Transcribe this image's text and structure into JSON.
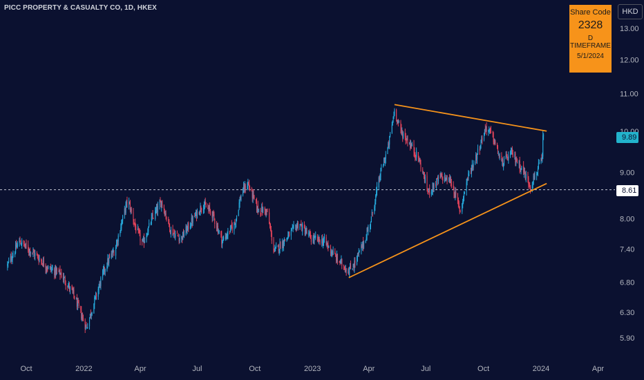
{
  "header": {
    "title": "PICC PROPERTY & CASUALTY CO, 1D, HKEX",
    "currency": "HKD"
  },
  "info_box": {
    "label": "Share Code",
    "code": "2328",
    "timeframe": "D TIMEFRAME",
    "date": "5/1/2024"
  },
  "price_tags": {
    "last": "9.89",
    "crosshair": "8.61"
  },
  "colors": {
    "background": "#0b1130",
    "up": "#26a7d9",
    "down": "#e0435a",
    "trendline": "#f7931a",
    "info_box": "#f7931a"
  },
  "chart_data": {
    "type": "candlestick",
    "symbol": "PICC PROPERTY & CASUALTY CO",
    "timeframe": "1D",
    "exchange": "HKEX",
    "log_scale": true,
    "grid": false,
    "y_ticks": [
      "13.00",
      "12.00",
      "11.00",
      "10.00",
      "9.00",
      "8.00",
      "7.40",
      "6.80",
      "6.30",
      "5.90"
    ],
    "x_ticks": [
      "Oct",
      "2022",
      "Apr",
      "Jul",
      "Oct",
      "2023",
      "Apr",
      "Jul",
      "Oct",
      "2024",
      "Apr"
    ],
    "close_path": [
      [
        "2021-09-01",
        7.1
      ],
      [
        "2021-09-20",
        7.55
      ],
      [
        "2021-10-15",
        7.3
      ],
      [
        "2021-11-05",
        7.05
      ],
      [
        "2021-11-25",
        6.95
      ],
      [
        "2021-12-15",
        6.6
      ],
      [
        "2021-12-30",
        6.2
      ],
      [
        "2022-01-05",
        6.05
      ],
      [
        "2022-01-20",
        6.55
      ],
      [
        "2022-02-05",
        7.1
      ],
      [
        "2022-02-20",
        7.4
      ],
      [
        "2022-03-02",
        7.9
      ],
      [
        "2022-03-12",
        8.4
      ],
      [
        "2022-03-25",
        7.8
      ],
      [
        "2022-04-05",
        7.5
      ],
      [
        "2022-04-20",
        8.0
      ],
      [
        "2022-05-05",
        8.35
      ],
      [
        "2022-05-20",
        7.75
      ],
      [
        "2022-06-05",
        7.6
      ],
      [
        "2022-06-25",
        8.0
      ],
      [
        "2022-07-10",
        8.3
      ],
      [
        "2022-07-25",
        8.1
      ],
      [
        "2022-08-10",
        7.55
      ],
      [
        "2022-08-30",
        7.9
      ],
      [
        "2022-09-10",
        8.55
      ],
      [
        "2022-09-20",
        8.75
      ],
      [
        "2022-10-05",
        8.2
      ],
      [
        "2022-10-20",
        8.15
      ],
      [
        "2022-11-01",
        7.35
      ],
      [
        "2022-11-20",
        7.6
      ],
      [
        "2022-12-10",
        7.9
      ],
      [
        "2022-12-30",
        7.6
      ],
      [
        "2023-01-20",
        7.55
      ],
      [
        "2023-02-10",
        7.2
      ],
      [
        "2023-02-28",
        7.0
      ],
      [
        "2023-03-10",
        7.15
      ],
      [
        "2023-03-25",
        7.55
      ],
      [
        "2023-04-05",
        8.0
      ],
      [
        "2023-04-20",
        9.0
      ],
      [
        "2023-05-02",
        9.6
      ],
      [
        "2023-05-12",
        10.55
      ],
      [
        "2023-05-22",
        10.0
      ],
      [
        "2023-06-05",
        9.7
      ],
      [
        "2023-06-20",
        9.3
      ],
      [
        "2023-07-05",
        8.55
      ],
      [
        "2023-07-25",
        8.9
      ],
      [
        "2023-08-10",
        8.8
      ],
      [
        "2023-08-25",
        8.15
      ],
      [
        "2023-09-05",
        8.85
      ],
      [
        "2023-09-20",
        9.4
      ],
      [
        "2023-10-05",
        10.1
      ],
      [
        "2023-10-15",
        9.9
      ],
      [
        "2023-10-30",
        9.2
      ],
      [
        "2023-11-15",
        9.45
      ],
      [
        "2023-12-01",
        9.1
      ],
      [
        "2023-12-15",
        8.7
      ],
      [
        "2024-01-03",
        9.3
      ],
      [
        "2024-01-05",
        9.89
      ]
    ],
    "trendlines": [
      {
        "from": [
          "2023-05-12",
          10.7
        ],
        "to": [
          "2024-01-10",
          10.0
        ]
      },
      {
        "from": [
          "2023-02-28",
          6.88
        ],
        "to": [
          "2024-01-10",
          8.75
        ]
      }
    ],
    "last_price": 9.89,
    "marked_level": 8.61
  }
}
